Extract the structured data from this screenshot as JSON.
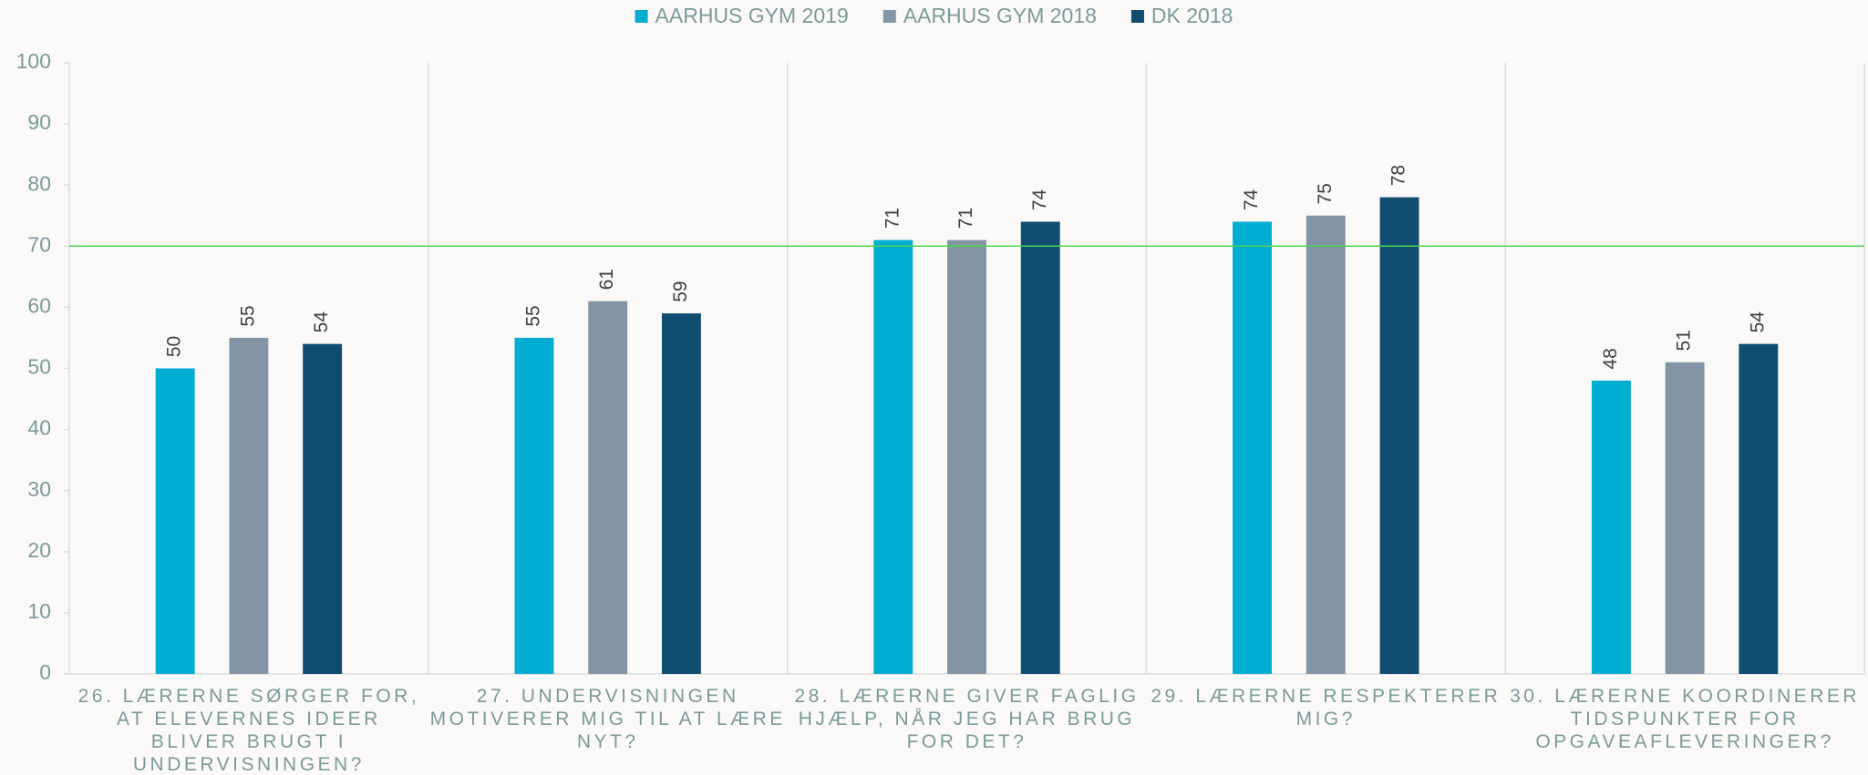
{
  "chart_data": {
    "type": "bar",
    "categories": [
      "26. LÆRERNE SØRGER FOR, AT ELEVERNES IDEER BLIVER BRUGT I UNDERVISNINGEN?",
      "27. UNDERVISNINGEN MOTIVERER MIG TIL AT LÆRE NYT?",
      "28. LÆRERNE GIVER FAGLIG HJÆLP, NÅR JEG HAR BRUG FOR DET?",
      "29. LÆRERNE RESPEKTERER MIG?",
      "30. LÆRERNE KOORDINERER TIDSPUNKTER FOR OPGAVEAFLEVERINGER?"
    ],
    "series": [
      {
        "name": "AARHUS GYM 2019",
        "color": "#00acd0",
        "values": [
          50,
          55,
          71,
          74,
          48
        ]
      },
      {
        "name": "AARHUS GYM 2018",
        "color": "#8395a4",
        "values": [
          55,
          61,
          71,
          75,
          51
        ]
      },
      {
        "name": "DK 2018",
        "color": "#0f4c70",
        "values": [
          54,
          59,
          74,
          78,
          54
        ]
      }
    ],
    "ylim": [
      0,
      100
    ],
    "yticks": [
      0,
      10,
      20,
      30,
      40,
      50,
      60,
      70,
      80,
      90,
      100
    ],
    "reference_line": 70,
    "reference_color": "#4cd44c",
    "legend": "top",
    "data_labels": true
  }
}
